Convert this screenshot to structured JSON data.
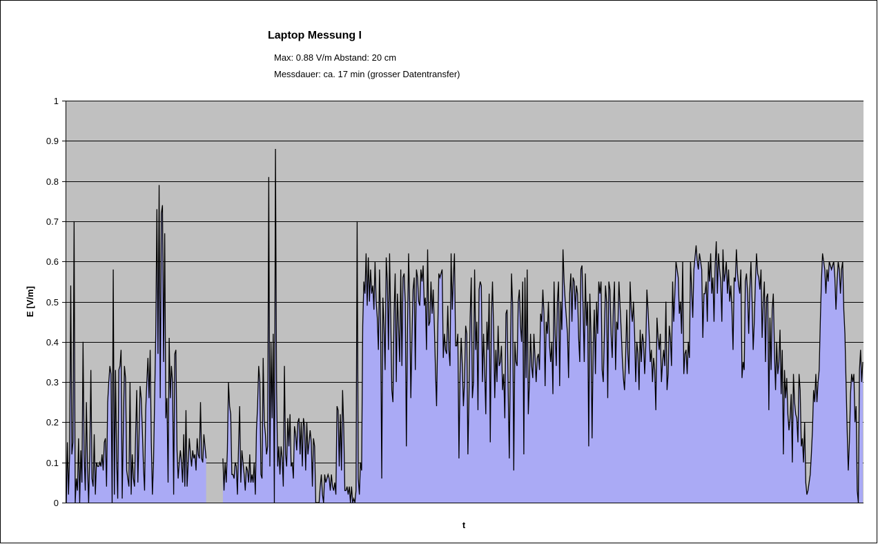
{
  "chart_data": {
    "type": "area",
    "title": "Laptop Messung I",
    "subtitle_lines": [
      "Max: 0.88 V/m  Abstand: 20 cm",
      "Messdauer: ca. 17 min (grosser Datentransfer)"
    ],
    "xlabel": "t",
    "ylabel": "E [V/m]",
    "ylim": [
      0,
      1
    ],
    "yticks": [
      "0",
      "0.1",
      "0.2",
      "0.3",
      "0.4",
      "0.5",
      "0.6",
      "0.7",
      "0.8",
      "0.9",
      "1"
    ],
    "grid": true,
    "legend": "none",
    "colors": {
      "plot_background": "#c0c0c0",
      "fill": "#aaaaf5",
      "line": "#000000",
      "grid": "#000000"
    },
    "series": [
      {
        "values": [
          0.0,
          0.15,
          0.02,
          0.12,
          0.54,
          0.12,
          0.15,
          0.7,
          0.0,
          0.06,
          0.03,
          0.16,
          0.0,
          0.13,
          0.05,
          0.4,
          0.12,
          0.03,
          0.25,
          0.09,
          0.0,
          0.12,
          0.33,
          0.06,
          0.04,
          0.17,
          0.02,
          0.1,
          0.09,
          0.09,
          0.1,
          0.09,
          0.12,
          0.08,
          0.15,
          0.16,
          0.04,
          0.25,
          0.3,
          0.34,
          0.32,
          0.0,
          0.58,
          0.02,
          0.33,
          0.11,
          0.01,
          0.33,
          0.34,
          0.38,
          0.01,
          0.18,
          0.34,
          0.31,
          0.08,
          0.06,
          0.04,
          0.3,
          0.02,
          0.12,
          0.06,
          0.04,
          0.17,
          0.28,
          0.05,
          0.16,
          0.29,
          0.26,
          0.18,
          0.09,
          0.03,
          0.23,
          0.3,
          0.36,
          0.26,
          0.38,
          0.15,
          0.02,
          0.1,
          0.26,
          0.42,
          0.73,
          0.37,
          0.79,
          0.26,
          0.72,
          0.74,
          0.35,
          0.67,
          0.21,
          0.26,
          0.05,
          0.41,
          0.26,
          0.34,
          0.3,
          0.02,
          0.37,
          0.38,
          0.13,
          0.06,
          0.1,
          0.13,
          0.1,
          0.05,
          0.17,
          0.04,
          0.23,
          0.04,
          0.1,
          0.16,
          0.12,
          0.09,
          0.13,
          0.11,
          0.12,
          0.08,
          0.16,
          0.12,
          0.11,
          0.25,
          0.11,
          0.1,
          0.17,
          0.14,
          0.11,
          null,
          null,
          null,
          null,
          null,
          null,
          null,
          null,
          null,
          null,
          null,
          null,
          null,
          null,
          0.11,
          0.03,
          0.1,
          0.05,
          0.13,
          0.3,
          0.24,
          0.22,
          0.07,
          0.07,
          0.06,
          0.1,
          0.09,
          0.02,
          0.14,
          0.24,
          0.05,
          0.13,
          0.1,
          0.07,
          0.03,
          0.09,
          0.08,
          0.05,
          0.12,
          0.05,
          0.07,
          0.05,
          0.1,
          0.02,
          0.18,
          0.24,
          0.34,
          0.3,
          0.07,
          0.06,
          0.36,
          0.2,
          0.17,
          0.12,
          0.14,
          0.81,
          0.09,
          0.4,
          0.21,
          0.42,
          0.0,
          0.88,
          0.28,
          0.09,
          0.14,
          0.07,
          0.14,
          0.11,
          0.04,
          0.34,
          0.12,
          0.09,
          0.21,
          0.14,
          0.22,
          0.09,
          0.1,
          0.06,
          0.19,
          0.17,
          0.13,
          0.2,
          0.21,
          0.12,
          0.2,
          0.09,
          0.21,
          0.19,
          0.08,
          0.2,
          0.12,
          0.15,
          0.18,
          0.15,
          0.04,
          0.16,
          0.14,
          0.0,
          0.0,
          0.0,
          0.0,
          0.04,
          0.07,
          0.02,
          0.0,
          0.07,
          0.05,
          0.06,
          0.07,
          0.06,
          0.03,
          0.07,
          0.04,
          0.03,
          0.05,
          0.02,
          0.24,
          0.23,
          0.09,
          0.22,
          0.08,
          0.28,
          0.19,
          0.03,
          0.03,
          0.04,
          0.02,
          0.04,
          0.0,
          0.04,
          0.0,
          0.01,
          0.0,
          0.03,
          0.7,
          0.06,
          0.02,
          0.1,
          0.08,
          0.44,
          0.55,
          0.52,
          0.62,
          0.49,
          0.61,
          0.5,
          0.58,
          0.52,
          0.54,
          0.48,
          0.6,
          0.5,
          0.46,
          0.38,
          0.58,
          0.44,
          0.06,
          0.51,
          0.44,
          0.33,
          0.61,
          0.55,
          0.38,
          0.62,
          0.46,
          0.28,
          0.25,
          0.47,
          0.57,
          0.3,
          0.52,
          0.44,
          0.35,
          0.58,
          0.34,
          0.56,
          0.57,
          0.5,
          0.14,
          0.43,
          0.62,
          0.49,
          0.26,
          0.41,
          0.53,
          0.56,
          0.33,
          0.58,
          0.56,
          0.5,
          0.49,
          0.58,
          0.55,
          0.59,
          0.49,
          0.51,
          0.38,
          0.63,
          0.44,
          0.45,
          0.55,
          0.47,
          0.53,
          0.44,
          0.33,
          0.24,
          0.42,
          0.57,
          0.56,
          0.57,
          0.58,
          0.36,
          0.42,
          0.38,
          0.37,
          0.49,
          0.38,
          0.34,
          0.62,
          0.48,
          0.56,
          0.62,
          0.39,
          0.39,
          0.42,
          0.11,
          0.32,
          0.41,
          0.34,
          0.24,
          0.3,
          0.44,
          0.42,
          0.12,
          0.27,
          0.46,
          0.56,
          0.26,
          0.3,
          0.58,
          0.38,
          0.45,
          0.23,
          0.53,
          0.55,
          0.54,
          0.3,
          0.42,
          0.33,
          0.22,
          0.45,
          0.38,
          0.52,
          0.15,
          0.46,
          0.55,
          0.43,
          0.26,
          0.38,
          0.3,
          0.44,
          0.34,
          0.35,
          0.39,
          0.28,
          0.32,
          0.21,
          0.47,
          0.48,
          0.28,
          0.11,
          0.36,
          0.57,
          0.49,
          0.08,
          0.4,
          0.35,
          0.34,
          0.5,
          0.53,
          0.44,
          0.4,
          0.55,
          0.12,
          0.56,
          0.31,
          0.58,
          0.22,
          0.3,
          0.42,
          0.34,
          0.31,
          0.42,
          0.36,
          0.3,
          0.36,
          0.37,
          0.33,
          0.47,
          0.45,
          0.53,
          0.47,
          0.29,
          0.45,
          0.42,
          0.5,
          0.39,
          0.35,
          0.4,
          0.27,
          0.55,
          0.42,
          0.34,
          0.5,
          0.55,
          0.29,
          0.5,
          0.43,
          0.63,
          0.55,
          0.5,
          0.46,
          0.42,
          0.31,
          0.52,
          0.57,
          0.45,
          0.56,
          0.55,
          0.48,
          0.54,
          0.52,
          0.41,
          0.35,
          0.58,
          0.59,
          0.48,
          0.35,
          0.57,
          0.44,
          0.5,
          0.14,
          0.52,
          0.42,
          0.16,
          0.39,
          0.48,
          0.32,
          0.5,
          0.42,
          0.55,
          0.52,
          0.55,
          0.33,
          0.3,
          0.42,
          0.54,
          0.5,
          0.26,
          0.55,
          0.53,
          0.42,
          0.36,
          0.48,
          0.55,
          0.33,
          0.45,
          0.43,
          0.55,
          0.49,
          0.43,
          0.36,
          0.31,
          0.28,
          0.36,
          0.48,
          0.37,
          0.32,
          0.55,
          0.48,
          0.45,
          0.5,
          0.42,
          0.3,
          0.4,
          0.37,
          0.28,
          0.43,
          0.35,
          0.42,
          0.4,
          0.32,
          0.39,
          0.53,
          0.48,
          0.42,
          0.35,
          0.38,
          0.3,
          0.36,
          0.33,
          0.23,
          0.46,
          0.41,
          0.38,
          0.42,
          0.3,
          0.35,
          0.38,
          0.34,
          0.5,
          0.28,
          0.32,
          0.44,
          0.41,
          0.34,
          0.55,
          0.45,
          0.52,
          0.6,
          0.58,
          0.56,
          0.47,
          0.5,
          0.42,
          0.6,
          0.32,
          0.37,
          0.38,
          0.32,
          0.4,
          0.36,
          0.6,
          0.53,
          0.46,
          0.58,
          0.61,
          0.64,
          0.6,
          0.58,
          0.62,
          0.6,
          0.58,
          0.41,
          0.52,
          0.52,
          0.55,
          0.45,
          0.6,
          0.55,
          0.62,
          0.52,
          0.56,
          0.45,
          0.59,
          0.65,
          0.52,
          0.62,
          0.58,
          0.55,
          0.45,
          0.63,
          0.55,
          0.57,
          0.6,
          0.52,
          0.58,
          0.5,
          0.54,
          0.48,
          0.38,
          0.56,
          0.55,
          0.63,
          0.57,
          0.54,
          0.52,
          0.58,
          0.31,
          0.35,
          0.33,
          0.55,
          0.57,
          0.52,
          0.42,
          0.53,
          0.6,
          0.5,
          0.38,
          0.45,
          0.55,
          0.62,
          0.57,
          0.56,
          0.53,
          0.58,
          0.41,
          0.5,
          0.55,
          0.35,
          0.51,
          0.52,
          0.23,
          0.46,
          0.33,
          0.48,
          0.52,
          0.38,
          0.28,
          0.4,
          0.32,
          0.35,
          0.43,
          0.27,
          0.38,
          0.12,
          0.33,
          0.26,
          0.31,
          0.22,
          0.18,
          0.21,
          0.27,
          0.1,
          0.32,
          0.25,
          0.22,
          0.21,
          0.15,
          0.32,
          0.28,
          0.14,
          0.16,
          0.1,
          0.2,
          0.05,
          0.02,
          0.03,
          0.05,
          0.07,
          0.12,
          0.18,
          0.28,
          0.25,
          0.32,
          0.25,
          0.3,
          0.33,
          0.45,
          0.55,
          0.62,
          0.6,
          0.58,
          0.52,
          0.58,
          0.55,
          0.6,
          0.59,
          0.58,
          0.59,
          0.6,
          0.56,
          0.48,
          0.55,
          0.6,
          0.58,
          0.52,
          0.58,
          0.6,
          0.48,
          0.42,
          0.3,
          0.18,
          0.08,
          0.15,
          0.27,
          0.32,
          0.3,
          0.32,
          0.2,
          0.24,
          0.03,
          0.0,
          0.33,
          0.38,
          0.3,
          0.35
        ]
      }
    ]
  }
}
